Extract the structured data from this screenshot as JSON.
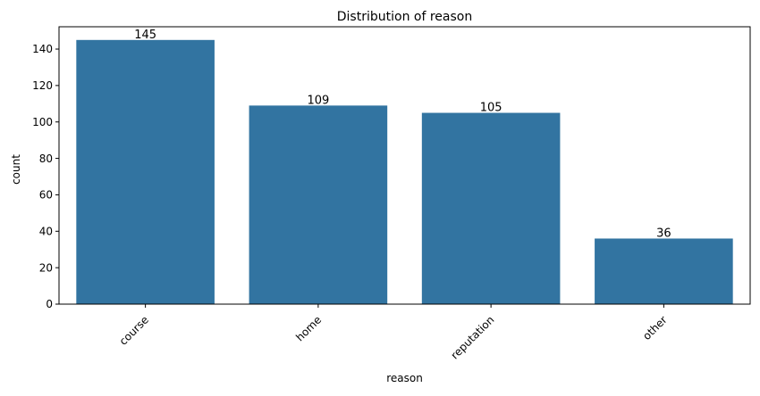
{
  "chart_data": {
    "type": "bar",
    "title": "Distribution of reason",
    "xlabel": "reason",
    "ylabel": "count",
    "categories": [
      "course",
      "home",
      "reputation",
      "other"
    ],
    "values": [
      145,
      109,
      105,
      36
    ],
    "data_labels": [
      "145",
      "109",
      "105",
      "36"
    ],
    "ylim": [
      0,
      152.25
    ],
    "yticks": [
      0,
      20,
      40,
      60,
      80,
      100,
      120,
      140
    ],
    "x_tick_rotation_deg": 45,
    "grid": false,
    "legend": "none",
    "bar_color": "#3274a1"
  }
}
